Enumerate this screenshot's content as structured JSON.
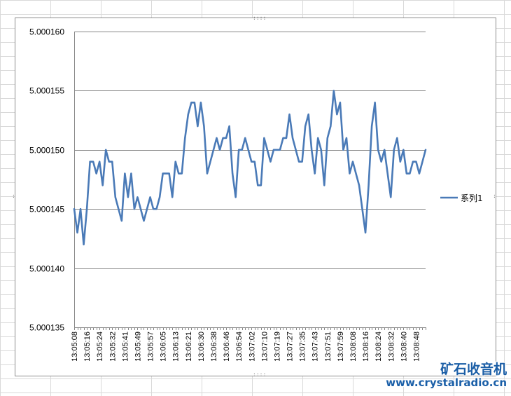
{
  "watermark": {
    "title": "矿石收音机",
    "url": "www.crystalradio.cn"
  },
  "colors": {
    "series": "#4a7ab7",
    "gridline": "#878787",
    "frame": "#8c8c8c",
    "sheet_grid": "#d9d9d9",
    "watermark": "#1a5fa8"
  },
  "chart_data": {
    "type": "line",
    "title": "",
    "xlabel": "",
    "ylabel": "",
    "ylim": [
      5.000135,
      5.00016
    ],
    "yticks": [
      "5.000135",
      "5.000140",
      "5.000145",
      "5.000150",
      "5.000155",
      "5.000160"
    ],
    "grid": true,
    "legend_position": "right",
    "x_tick_labels": [
      "13:05:08",
      "13:05:16",
      "13:05:24",
      "13:05:32",
      "13:05:41",
      "13:05:49",
      "13:05:57",
      "13:06:05",
      "13:06:13",
      "13:06:21",
      "13:06:30",
      "13:06:38",
      "13:06:46",
      "13:06:54",
      "13:07:02",
      "13:07:10",
      "13:07:19",
      "13:07:27",
      "13:07:35",
      "13:07:43",
      "13:07:51",
      "13:07:59",
      "13:08:08",
      "13:08:16",
      "13:08:24",
      "13:08:32",
      "13:08:40",
      "13:08:48"
    ],
    "series": [
      {
        "name": "系列1",
        "values": [
          5.000145,
          5.000143,
          5.000145,
          5.000142,
          5.000145,
          5.000149,
          5.000149,
          5.000148,
          5.000149,
          5.000147,
          5.00015,
          5.000149,
          5.000149,
          5.000146,
          5.000145,
          5.000144,
          5.000148,
          5.000146,
          5.000148,
          5.000145,
          5.000146,
          5.000145,
          5.000144,
          5.000145,
          5.000146,
          5.000145,
          5.000145,
          5.000146,
          5.000148,
          5.000148,
          5.000148,
          5.000146,
          5.000149,
          5.000148,
          5.000148,
          5.000151,
          5.000153,
          5.000154,
          5.000154,
          5.000152,
          5.000154,
          5.000152,
          5.000148,
          5.000149,
          5.00015,
          5.000151,
          5.00015,
          5.000151,
          5.000151,
          5.000152,
          5.000148,
          5.000146,
          5.00015,
          5.00015,
          5.000151,
          5.00015,
          5.000149,
          5.000149,
          5.000147,
          5.000147,
          5.000151,
          5.00015,
          5.000149,
          5.00015,
          5.00015,
          5.00015,
          5.000151,
          5.000151,
          5.000153,
          5.000151,
          5.00015,
          5.000149,
          5.000149,
          5.000152,
          5.000153,
          5.00015,
          5.000148,
          5.000151,
          5.00015,
          5.000147,
          5.000151,
          5.000152,
          5.000155,
          5.000153,
          5.000154,
          5.00015,
          5.000151,
          5.000148,
          5.000149,
          5.000148,
          5.000147,
          5.000145,
          5.000143,
          5.000147,
          5.000152,
          5.000154,
          5.00015,
          5.000149,
          5.00015,
          5.000148,
          5.000146,
          5.00015,
          5.000151,
          5.000149,
          5.00015,
          5.000148,
          5.000148,
          5.000149,
          5.000149,
          5.000148,
          5.000149,
          5.00015
        ]
      }
    ]
  }
}
